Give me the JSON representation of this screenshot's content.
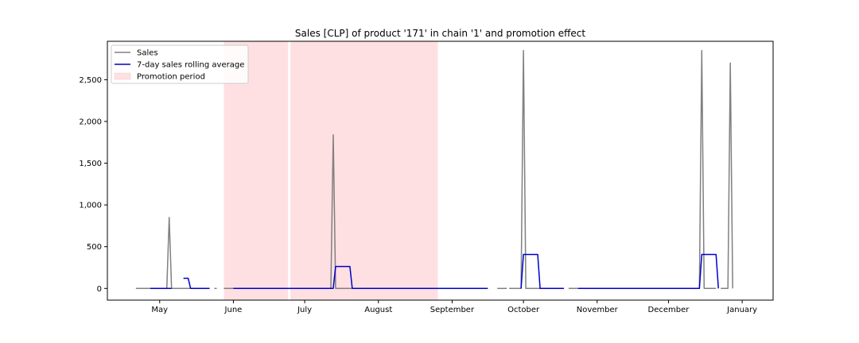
{
  "chart_data": {
    "type": "line",
    "title": "Sales [CLP] of product '171' in chain '1' and promotion effect",
    "xlabel": "",
    "ylabel": "",
    "x_axis": {
      "type": "date",
      "range": [
        "2021-04-09",
        "2022-01-14"
      ],
      "ticks": [
        {
          "date": "2021-05-01",
          "label": "May"
        },
        {
          "date": "2021-06-01",
          "label": "June"
        },
        {
          "date": "2021-07-01",
          "label": "July"
        },
        {
          "date": "2021-08-01",
          "label": "August"
        },
        {
          "date": "2021-09-01",
          "label": "September"
        },
        {
          "date": "2021-10-01",
          "label": "October"
        },
        {
          "date": "2021-11-01",
          "label": "November"
        },
        {
          "date": "2021-12-01",
          "label": "December"
        },
        {
          "date": "2022-01-01",
          "label": "January"
        }
      ]
    },
    "y_axis": {
      "range": [
        -140,
        2960
      ],
      "ticks": [
        {
          "value": 0,
          "label": "0"
        },
        {
          "value": 500,
          "label": "500"
        },
        {
          "value": 1000,
          "label": "1,000"
        },
        {
          "value": 1500,
          "label": "1,500"
        },
        {
          "value": 2000,
          "label": "2,000"
        },
        {
          "value": 2500,
          "label": "2,500"
        }
      ]
    },
    "grid": false,
    "legend": {
      "placement": "top-left",
      "entries": [
        {
          "label": "Sales",
          "kind": "line",
          "color": "#808080"
        },
        {
          "label": "7-day sales rolling average",
          "kind": "line",
          "color": "#0000cc"
        },
        {
          "label": "Promotion period",
          "kind": "patch",
          "color": "#ffe0e2"
        }
      ]
    },
    "promotion_periods": [
      {
        "start": "2021-05-28",
        "end": "2021-06-24"
      },
      {
        "start": "2021-06-25",
        "end": "2021-08-26"
      }
    ],
    "series": [
      {
        "name": "Sales",
        "color": "#808080",
        "segments": [
          [
            [
              "2021-04-21",
              0
            ],
            [
              "2021-04-27",
              0
            ]
          ],
          [
            [
              "2021-05-03",
              0
            ],
            [
              "2021-05-04",
              0
            ],
            [
              "2021-05-05",
              850
            ],
            [
              "2021-05-06",
              0
            ],
            [
              "2021-05-11",
              0
            ],
            [
              "2021-05-15",
              0
            ],
            [
              "2021-05-20",
              0
            ],
            [
              "2021-05-22",
              0
            ]
          ],
          [
            [
              "2021-05-24",
              0
            ],
            [
              "2021-05-25",
              0
            ]
          ],
          [
            [
              "2021-05-28",
              0
            ],
            [
              "2021-06-01",
              0
            ],
            [
              "2021-06-24",
              0
            ],
            [
              "2021-06-25",
              0
            ],
            [
              "2021-07-11",
              0
            ],
            [
              "2021-07-12",
              0
            ],
            [
              "2021-07-13",
              1840
            ],
            [
              "2021-07-14",
              0
            ],
            [
              "2021-08-01",
              0
            ],
            [
              "2021-08-26",
              0
            ],
            [
              "2021-09-01",
              0
            ],
            [
              "2021-09-16",
              0
            ]
          ],
          [
            [
              "2021-09-20",
              0
            ],
            [
              "2021-09-24",
              0
            ]
          ],
          [
            [
              "2021-09-25",
              0
            ],
            [
              "2021-09-30",
              0
            ],
            [
              "2021-10-01",
              2850
            ],
            [
              "2021-10-02",
              0
            ],
            [
              "2021-10-10",
              0
            ],
            [
              "2021-10-18",
              0
            ]
          ],
          [
            [
              "2021-10-20",
              0
            ],
            [
              "2021-10-26",
              0
            ]
          ],
          [
            [
              "2021-10-27",
              0
            ],
            [
              "2021-11-15",
              0
            ],
            [
              "2021-12-10",
              0
            ],
            [
              "2021-12-14",
              0
            ],
            [
              "2021-12-15",
              2850
            ],
            [
              "2021-12-16",
              0
            ],
            [
              "2021-12-21",
              0
            ]
          ],
          [
            [
              "2021-12-23",
              0
            ],
            [
              "2021-12-26",
              0
            ],
            [
              "2021-12-27",
              2700
            ],
            [
              "2021-12-28",
              0
            ]
          ]
        ]
      },
      {
        "name": "7-day sales rolling average",
        "color": "#0000cc",
        "segments": [
          [
            [
              "2021-04-27",
              0
            ],
            [
              "2021-05-06",
              0
            ]
          ],
          [
            [
              "2021-05-11",
              121
            ],
            [
              "2021-05-13",
              121
            ],
            [
              "2021-05-14",
              0
            ],
            [
              "2021-05-22",
              0
            ]
          ],
          [
            [
              "2021-06-01",
              0
            ],
            [
              "2021-07-13",
              0
            ],
            [
              "2021-07-14",
              263
            ],
            [
              "2021-07-20",
              263
            ],
            [
              "2021-07-21",
              0
            ],
            [
              "2021-09-16",
              0
            ]
          ],
          [
            [
              "2021-09-30",
              0
            ],
            [
              "2021-10-01",
              407
            ],
            [
              "2021-10-07",
              407
            ],
            [
              "2021-10-08",
              0
            ],
            [
              "2021-10-18",
              0
            ]
          ],
          [
            [
              "2021-10-24",
              0
            ],
            [
              "2021-12-14",
              0
            ],
            [
              "2021-12-15",
              407
            ],
            [
              "2021-12-21",
              407
            ],
            [
              "2021-12-22",
              0
            ]
          ]
        ]
      }
    ]
  }
}
